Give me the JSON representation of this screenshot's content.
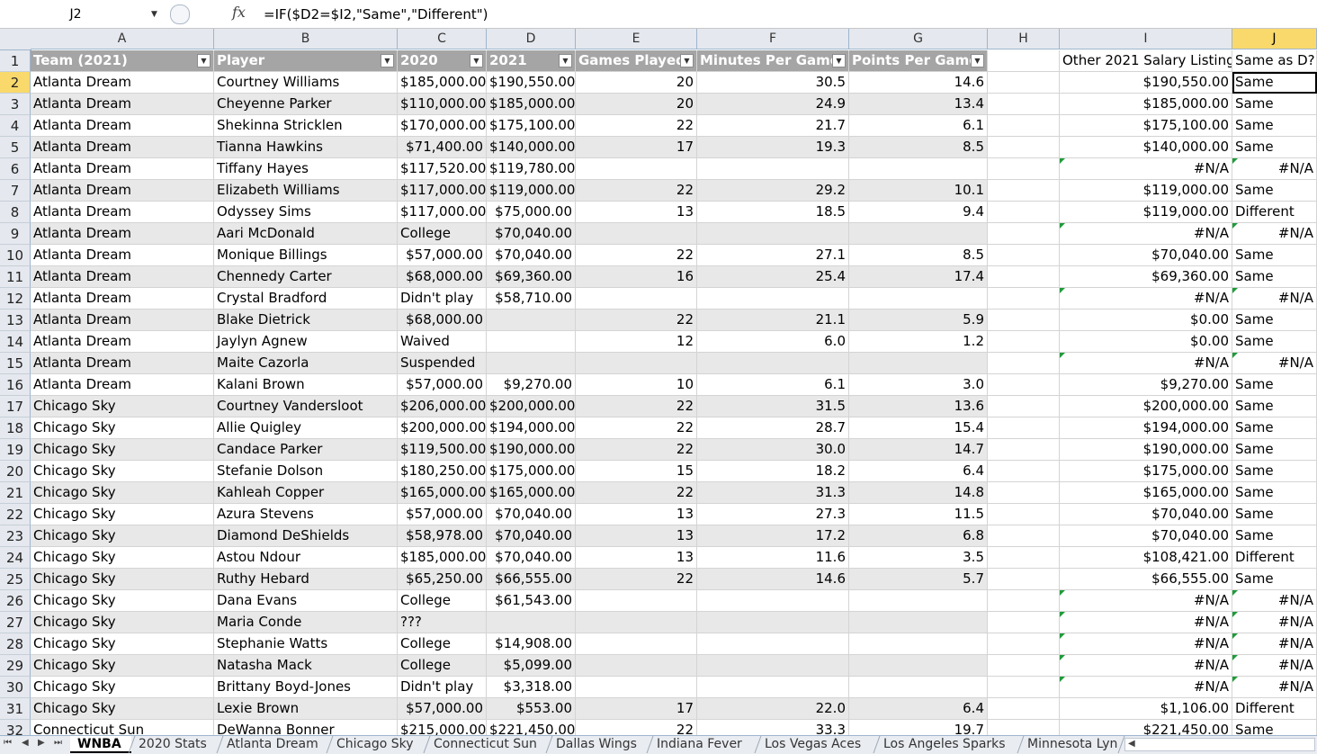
{
  "formula_bar": {
    "name_box": "J2",
    "fx": "fx",
    "formula": "=IF($D2=$I2,\"Same\",\"Different\")"
  },
  "columns": [
    "A",
    "B",
    "C",
    "D",
    "E",
    "F",
    "G",
    "H",
    "I",
    "J"
  ],
  "selected_column": "J",
  "selected_cell": {
    "row": 2,
    "col": "J"
  },
  "header_row": {
    "row": "1",
    "cells": [
      "Team (2021)",
      "Player",
      "2020",
      "2021",
      "Games Played",
      "Minutes Per Game",
      "Points Per Game",
      "",
      "Other 2021 Salary Listing",
      "Same as D?"
    ]
  },
  "rows": [
    {
      "n": "2",
      "team": "Atlanta Dream",
      "player": "Courtney Williams",
      "y2020": "$185,000.00",
      "y2021": "$190,550.00",
      "gp": "20",
      "mpg": "30.5",
      "ppg": "14.6",
      "other": "$190,550.00",
      "same": "Same"
    },
    {
      "n": "3",
      "team": "Atlanta Dream",
      "player": "Cheyenne Parker",
      "y2020": "$110,000.00",
      "y2021": "$185,000.00",
      "gp": "20",
      "mpg": "24.9",
      "ppg": "13.4",
      "other": "$185,000.00",
      "same": "Same"
    },
    {
      "n": "4",
      "team": "Atlanta Dream",
      "player": "Shekinna Stricklen",
      "y2020": "$170,000.00",
      "y2021": "$175,100.00",
      "gp": "22",
      "mpg": "21.7",
      "ppg": "6.1",
      "other": "$175,100.00",
      "same": "Same"
    },
    {
      "n": "5",
      "team": "Atlanta Dream",
      "player": "Tianna Hawkins",
      "y2020": "$71,400.00",
      "y2021": "$140,000.00",
      "gp": "17",
      "mpg": "19.3",
      "ppg": "8.5",
      "other": "$140,000.00",
      "same": "Same"
    },
    {
      "n": "6",
      "team": "Atlanta Dream",
      "player": "Tiffany Hayes",
      "y2020": "$117,520.00",
      "y2021": "$119,780.00",
      "gp": "",
      "mpg": "",
      "ppg": "",
      "other": "#N/A",
      "same": "#N/A"
    },
    {
      "n": "7",
      "team": "Atlanta Dream",
      "player": "Elizabeth Williams",
      "y2020": "$117,000.00",
      "y2021": "$119,000.00",
      "gp": "22",
      "mpg": "29.2",
      "ppg": "10.1",
      "other": "$119,000.00",
      "same": "Same"
    },
    {
      "n": "8",
      "team": "Atlanta Dream",
      "player": "Odyssey Sims",
      "y2020": "$117,000.00",
      "y2021": "$75,000.00",
      "gp": "13",
      "mpg": "18.5",
      "ppg": "9.4",
      "other": "$119,000.00",
      "same": "Different"
    },
    {
      "n": "9",
      "team": "Atlanta Dream",
      "player": "Aari McDonald",
      "y2020": "College",
      "y2021": "$70,040.00",
      "gp": "",
      "mpg": "",
      "ppg": "",
      "other": "#N/A",
      "same": "#N/A"
    },
    {
      "n": "10",
      "team": "Atlanta Dream",
      "player": "Monique Billings",
      "y2020": "$57,000.00",
      "y2021": "$70,040.00",
      "gp": "22",
      "mpg": "27.1",
      "ppg": "8.5",
      "other": "$70,040.00",
      "same": "Same"
    },
    {
      "n": "11",
      "team": "Atlanta Dream",
      "player": "Chennedy Carter",
      "y2020": "$68,000.00",
      "y2021": "$69,360.00",
      "gp": "16",
      "mpg": "25.4",
      "ppg": "17.4",
      "other": "$69,360.00",
      "same": "Same"
    },
    {
      "n": "12",
      "team": "Atlanta Dream",
      "player": "Crystal Bradford",
      "y2020": "Didn't play",
      "y2021": "$58,710.00",
      "gp": "",
      "mpg": "",
      "ppg": "",
      "other": "#N/A",
      "same": "#N/A"
    },
    {
      "n": "13",
      "team": "Atlanta Dream",
      "player": "Blake Dietrick",
      "y2020": "$68,000.00",
      "y2021": "",
      "gp": "22",
      "mpg": "21.1",
      "ppg": "5.9",
      "other": "$0.00",
      "same": "Same"
    },
    {
      "n": "14",
      "team": "Atlanta Dream",
      "player": "Jaylyn Agnew",
      "y2020": "Waived",
      "y2021": "",
      "gp": "12",
      "mpg": "6.0",
      "ppg": "1.2",
      "other": "$0.00",
      "same": "Same"
    },
    {
      "n": "15",
      "team": "Atlanta Dream",
      "player": "Maite Cazorla",
      "y2020": "Suspended",
      "y2021": "",
      "gp": "",
      "mpg": "",
      "ppg": "",
      "other": "#N/A",
      "same": "#N/A"
    },
    {
      "n": "16",
      "team": "Atlanta Dream",
      "player": "Kalani Brown",
      "y2020": "$57,000.00",
      "y2021": "$9,270.00",
      "gp": "10",
      "mpg": "6.1",
      "ppg": "3.0",
      "other": "$9,270.00",
      "same": "Same"
    },
    {
      "n": "17",
      "team": "Chicago Sky",
      "player": "Courtney Vandersloot",
      "y2020": "$206,000.00",
      "y2021": "$200,000.00",
      "gp": "22",
      "mpg": "31.5",
      "ppg": "13.6",
      "other": "$200,000.00",
      "same": "Same"
    },
    {
      "n": "18",
      "team": "Chicago Sky",
      "player": "Allie Quigley",
      "y2020": "$200,000.00",
      "y2021": "$194,000.00",
      "gp": "22",
      "mpg": "28.7",
      "ppg": "15.4",
      "other": "$194,000.00",
      "same": "Same"
    },
    {
      "n": "19",
      "team": "Chicago Sky",
      "player": "Candace Parker",
      "y2020": "$119,500.00",
      "y2021": "$190,000.00",
      "gp": "22",
      "mpg": "30.0",
      "ppg": "14.7",
      "other": "$190,000.00",
      "same": "Same"
    },
    {
      "n": "20",
      "team": "Chicago Sky",
      "player": "Stefanie Dolson",
      "y2020": "$180,250.00",
      "y2021": "$175,000.00",
      "gp": "15",
      "mpg": "18.2",
      "ppg": "6.4",
      "other": "$175,000.00",
      "same": "Same"
    },
    {
      "n": "21",
      "team": "Chicago Sky",
      "player": "Kahleah Copper",
      "y2020": "$165,000.00",
      "y2021": "$165,000.00",
      "gp": "22",
      "mpg": "31.3",
      "ppg": "14.8",
      "other": "$165,000.00",
      "same": "Same"
    },
    {
      "n": "22",
      "team": "Chicago Sky",
      "player": "Azura Stevens",
      "y2020": "$57,000.00",
      "y2021": "$70,040.00",
      "gp": "13",
      "mpg": "27.3",
      "ppg": "11.5",
      "other": "$70,040.00",
      "same": "Same"
    },
    {
      "n": "23",
      "team": "Chicago Sky",
      "player": "Diamond DeShields",
      "y2020": "$58,978.00",
      "y2021": "$70,040.00",
      "gp": "13",
      "mpg": "17.2",
      "ppg": "6.8",
      "other": "$70,040.00",
      "same": "Same"
    },
    {
      "n": "24",
      "team": "Chicago Sky",
      "player": "Astou Ndour",
      "y2020": "$185,000.00",
      "y2021": "$70,040.00",
      "gp": "13",
      "mpg": "11.6",
      "ppg": "3.5",
      "other": "$108,421.00",
      "same": "Different"
    },
    {
      "n": "25",
      "team": "Chicago Sky",
      "player": "Ruthy Hebard",
      "y2020": "$65,250.00",
      "y2021": "$66,555.00",
      "gp": "22",
      "mpg": "14.6",
      "ppg": "5.7",
      "other": "$66,555.00",
      "same": "Same"
    },
    {
      "n": "26",
      "team": "Chicago Sky",
      "player": "Dana Evans",
      "y2020": "College",
      "y2021": "$61,543.00",
      "gp": "",
      "mpg": "",
      "ppg": "",
      "other": "#N/A",
      "same": "#N/A"
    },
    {
      "n": "27",
      "team": "Chicago Sky",
      "player": "Maria Conde",
      "y2020": "???",
      "y2021": "",
      "gp": "",
      "mpg": "",
      "ppg": "",
      "other": "#N/A",
      "same": "#N/A"
    },
    {
      "n": "28",
      "team": "Chicago Sky",
      "player": "Stephanie Watts",
      "y2020": "College",
      "y2021": "$14,908.00",
      "gp": "",
      "mpg": "",
      "ppg": "",
      "other": "#N/A",
      "same": "#N/A"
    },
    {
      "n": "29",
      "team": "Chicago Sky",
      "player": "Natasha Mack",
      "y2020": "College",
      "y2021": "$5,099.00",
      "gp": "",
      "mpg": "",
      "ppg": "",
      "other": "#N/A",
      "same": "#N/A"
    },
    {
      "n": "30",
      "team": "Chicago Sky",
      "player": "Brittany Boyd-Jones",
      "y2020": "Didn't play",
      "y2021": "$3,318.00",
      "gp": "",
      "mpg": "",
      "ppg": "",
      "other": "#N/A",
      "same": "#N/A"
    },
    {
      "n": "31",
      "team": "Chicago Sky",
      "player": "Lexie Brown",
      "y2020": "$57,000.00",
      "y2021": "$553.00",
      "gp": "17",
      "mpg": "22.0",
      "ppg": "6.4",
      "other": "$1,106.00",
      "same": "Different"
    },
    {
      "n": "32",
      "team": "Connecticut Sun",
      "player": "DeWanna Bonner",
      "y2020": "$215,000.00",
      "y2021": "$221,450.00",
      "gp": "22",
      "mpg": "33.3",
      "ppg": "19.7",
      "other": "$221,450.00",
      "same": "Same"
    }
  ],
  "sheet_tabs": [
    "WNBA",
    "2020 Stats",
    "Atlanta Dream",
    "Chicago Sky",
    "Connecticut Sun",
    "Dallas Wings",
    "Indiana Fever",
    "Los Vegas Aces",
    "Los Angeles Sparks",
    "Minnesota Lyn"
  ],
  "active_tab": "WNBA"
}
